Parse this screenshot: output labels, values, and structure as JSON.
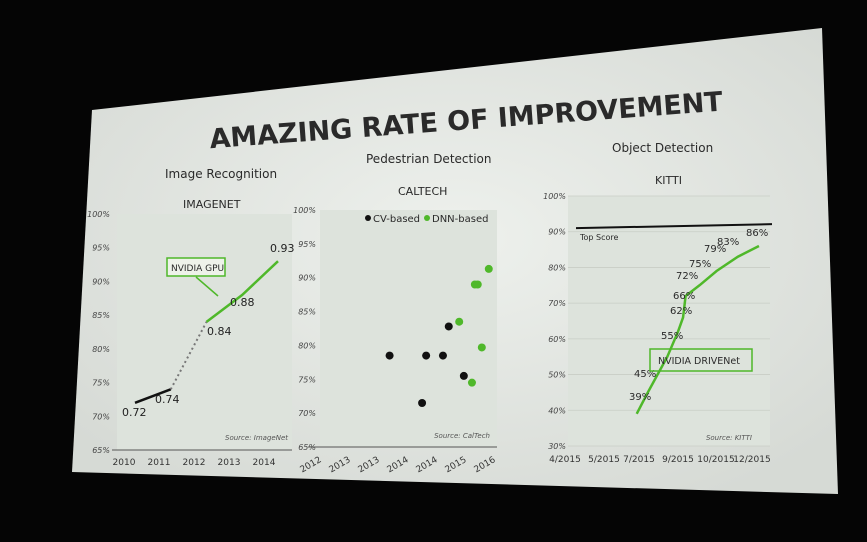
{
  "slide": {
    "title": "AMAZING RATE OF IMPROVEMENT",
    "colors": {
      "background": "#050505",
      "slide": "#e9ece8",
      "plot": "#dde3dc",
      "green": "#4fb82a",
      "black": "#111111"
    }
  },
  "chart_data": [
    {
      "type": "line",
      "heading": "Image Recognition",
      "title": "IMAGENET",
      "x": [
        2010,
        2011,
        2012,
        2013,
        2014
      ],
      "xticks": [
        "2010",
        "2011",
        "2012",
        "2013",
        "2014"
      ],
      "yticks": [
        "65%",
        "70%",
        "75%",
        "80%",
        "85%",
        "90%",
        "95%",
        "100%"
      ],
      "ylim": [
        0.65,
        1.0
      ],
      "series": [
        {
          "segment": "pre-GPU",
          "style": "solid",
          "color": "#111111",
          "x": [
            2010,
            2011
          ],
          "values": [
            0.72,
            0.74
          ]
        },
        {
          "segment": "transition",
          "style": "dotted",
          "color": "#777777",
          "x": [
            2011,
            2012
          ],
          "values": [
            0.74,
            0.84
          ]
        },
        {
          "segment": "GPU",
          "style": "solid",
          "color": "#4fb82a",
          "x": [
            2012,
            2013,
            2014
          ],
          "values": [
            0.84,
            0.88,
            0.93
          ]
        }
      ],
      "data_labels": [
        "0.72",
        "0.74",
        "0.84",
        "0.88",
        "0.93"
      ],
      "annotation": "NVIDIA GPU",
      "source": "Source: ImageNet"
    },
    {
      "type": "scatter",
      "heading": "Pedestrian Detection",
      "title": "CALTECH",
      "xticks": [
        "2012",
        "2013",
        "2013",
        "2014",
        "2014",
        "2015",
        "2016"
      ],
      "yticks": [
        "65%",
        "70%",
        "75%",
        "80%",
        "85%",
        "90%",
        "95%",
        "100%"
      ],
      "ylim": [
        65,
        100
      ],
      "legend": [
        "CV-based",
        "DNN-based"
      ],
      "legend_position": "top",
      "series": [
        {
          "name": "CV-based",
          "color": "#111111",
          "x": [
            2013.7,
            2014.26,
            2014.33,
            2014.62,
            2014.72,
            2014.98
          ],
          "values": [
            78.5,
            71.5,
            78.5,
            78.5,
            82.8,
            75.5
          ]
        },
        {
          "name": "DNN-based",
          "color": "#4fb82a",
          "x": [
            2014.9,
            2015.12,
            2015.17,
            2015.22,
            2015.29,
            2015.41
          ],
          "values": [
            83.5,
            74.5,
            89.0,
            89.0,
            79.7,
            91.3
          ]
        }
      ],
      "source": "Source: CalTech"
    },
    {
      "type": "line",
      "heading": "Object Detection",
      "title": "KITTI",
      "xticks": [
        "4/2015",
        "5/2015",
        "7/2015",
        "9/2015",
        "10/2015",
        "12/2015"
      ],
      "yticks": [
        "30%",
        "40%",
        "50%",
        "60%",
        "70%",
        "80%",
        "90%",
        "100%"
      ],
      "ylim": [
        30,
        100
      ],
      "reference_line": {
        "label": "Top Score",
        "value": 91
      },
      "series": [
        {
          "name": "NVIDIA DRIVENet",
          "color": "#4fb82a",
          "x": [
            "2015-06-27",
            "2015-07-15",
            "2015-08-15",
            "2015-09-01",
            "2015-09-05",
            "2015-09-07",
            "2015-09-18",
            "2015-10-02",
            "2015-11-07",
            "2015-12-13"
          ],
          "values": [
            39,
            45,
            55,
            62,
            66,
            72,
            75,
            79,
            83,
            86
          ]
        }
      ],
      "data_labels": [
        "39%",
        "45%",
        "55%",
        "62%",
        "66%",
        "72%",
        "75%",
        "79%",
        "83%",
        "86%"
      ],
      "annotation": "NVIDIA DRIVENet",
      "source": "Source: KITTI"
    }
  ]
}
